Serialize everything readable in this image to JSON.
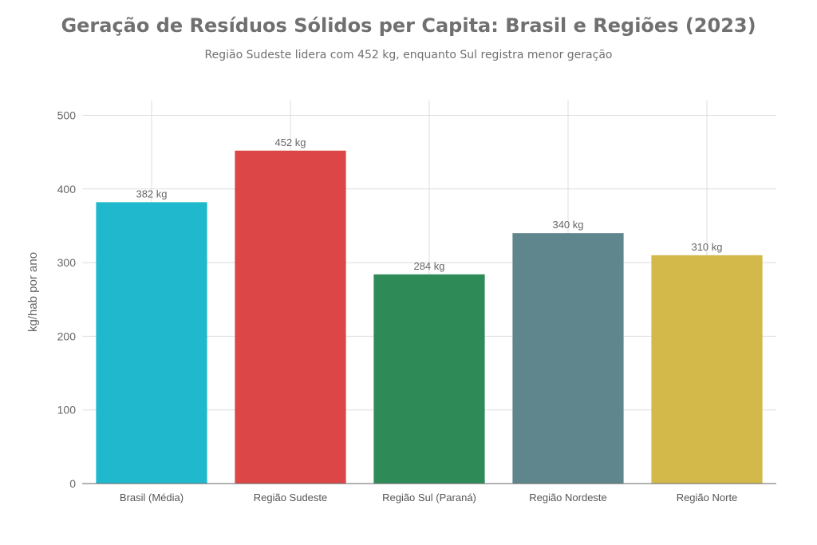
{
  "chart_data": {
    "type": "bar",
    "title": "Geração de Resíduos Sólidos per Capita: Brasil e Regiões (2023)",
    "subtitle": "Região Sudeste lidera com 452 kg, enquanto Sul registra menor geração",
    "xlabel": "",
    "ylabel": "kg/hab por ano",
    "ylim": [
      0,
      520
    ],
    "yticks": [
      0,
      100,
      200,
      300,
      400,
      500
    ],
    "grid": true,
    "categories": [
      "Brasil (Média)",
      "Região Sudeste",
      "Região Sul (Paraná)",
      "Região Nordeste",
      "Região Norte"
    ],
    "values": [
      382,
      452,
      284,
      340,
      310
    ],
    "data_labels": [
      "382 kg",
      "452 kg",
      "284 kg",
      "340 kg",
      "310 kg"
    ],
    "colors": [
      "#20B8CD",
      "#DC4646",
      "#2E8B57",
      "#5F868C",
      "#D2B94A"
    ]
  }
}
